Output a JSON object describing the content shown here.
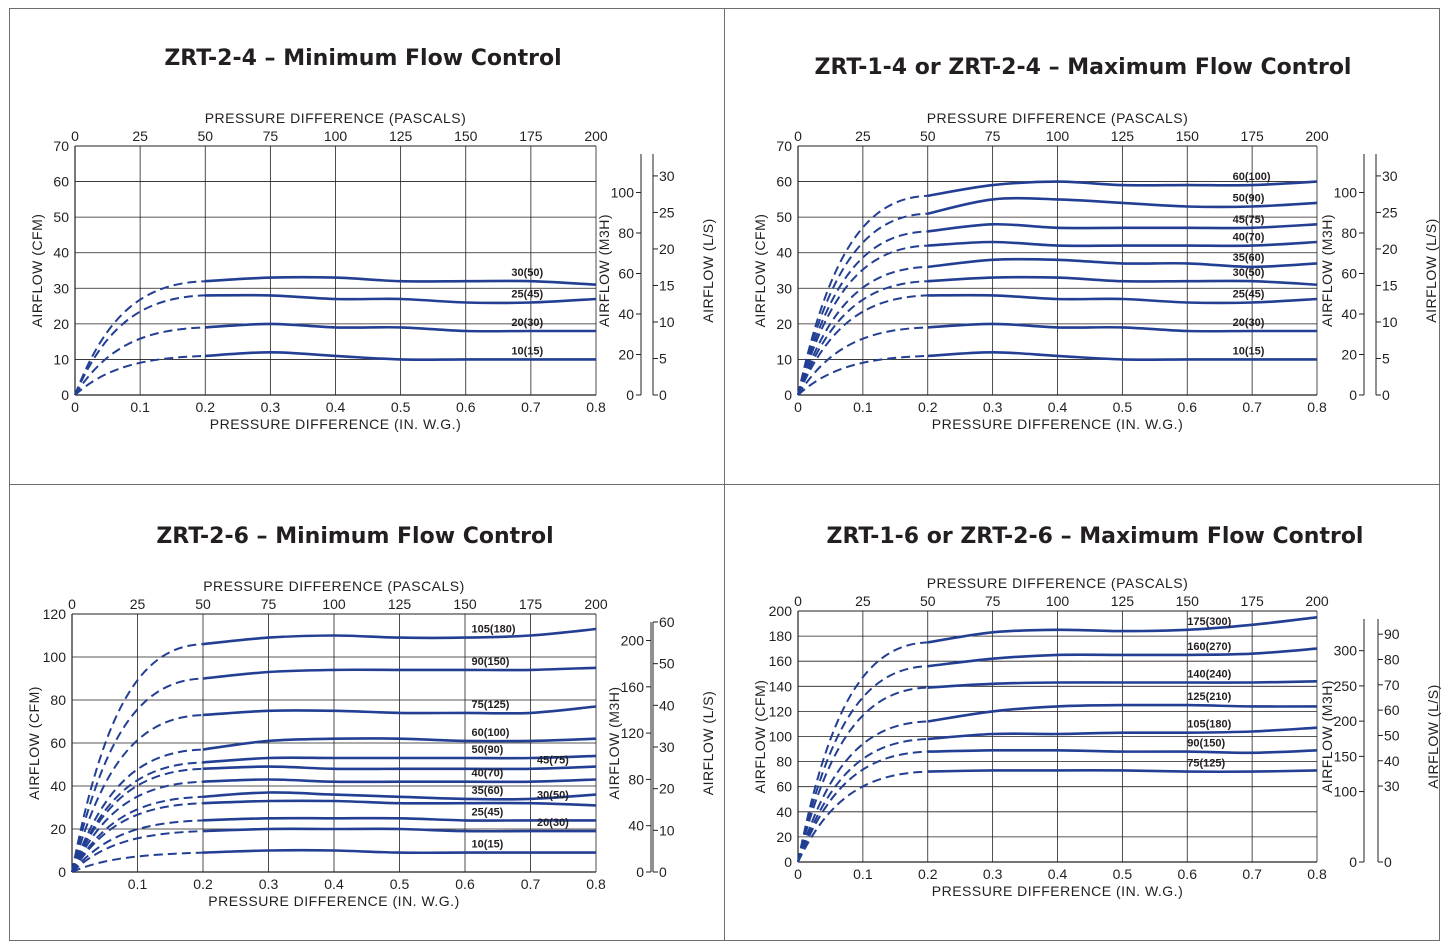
{
  "colors": {
    "curve": "#233f94",
    "axis": "#231f20",
    "border": "#6d6e71"
  },
  "chart_data": [
    {
      "type": "line",
      "title": "ZRT-2-4  –  Minimum Flow Control",
      "xlabel": "PRESSURE DIFFERENCE     (IN. W.G.)",
      "x2label": "PRESSURE DIFFERENCE  (PASCALS)",
      "ylabel": "AIRFLOW   (CFM)",
      "y2label": "AIRFLOW   (M3H)",
      "y3label": "AIRFLOW   (L/S)",
      "xlim": [
        0,
        0.8
      ],
      "ylim": [
        0,
        70
      ],
      "x_ticks": [
        "0",
        "0.1",
        "0.2",
        "0.3",
        "0.4",
        "0.5",
        "0.6",
        "0.7",
        "0.8"
      ],
      "x2_ticks": [
        "0",
        "25",
        "50",
        "75",
        "100",
        "125",
        "150",
        "175",
        "200"
      ],
      "y_ticks": [
        "0",
        "10",
        "20",
        "30",
        "40",
        "50",
        "60",
        "70"
      ],
      "m3h_ticks": [
        "0",
        "20",
        "40",
        "60",
        "80",
        "100"
      ],
      "ls_ticks": [
        "0",
        "5",
        "10",
        "15",
        "20",
        "25",
        "30"
      ],
      "series": [
        {
          "name": "30(50)",
          "label_x": 0.67,
          "x": [
            0.2,
            0.3,
            0.4,
            0.5,
            0.6,
            0.7,
            0.8
          ],
          "values": [
            32,
            33,
            33,
            32,
            32,
            32,
            31
          ]
        },
        {
          "name": "25(45)",
          "label_x": 0.67,
          "x": [
            0.2,
            0.3,
            0.4,
            0.5,
            0.6,
            0.7,
            0.8
          ],
          "values": [
            28,
            28,
            27,
            27,
            26,
            26,
            27
          ]
        },
        {
          "name": "20(30)",
          "label_x": 0.67,
          "x": [
            0.2,
            0.3,
            0.4,
            0.5,
            0.6,
            0.7,
            0.8
          ],
          "values": [
            19,
            20,
            19,
            19,
            18,
            18,
            18
          ]
        },
        {
          "name": "10(15)",
          "label_x": 0.67,
          "x": [
            0.2,
            0.3,
            0.4,
            0.5,
            0.6,
            0.7,
            0.8
          ],
          "values": [
            11,
            12,
            11,
            10,
            10,
            10,
            10
          ]
        }
      ]
    },
    {
      "type": "line",
      "title": "ZRT-1-4 or ZRT-2-4  –  Maximum Flow Control",
      "xlabel": "PRESSURE DIFFERENCE     (IN. W.G.)",
      "x2label": "PRESSURE DIFFERENCE  (PASCALS)",
      "ylabel": "AIRFLOW   (CFM)",
      "y2label": "AIRFLOW   (M3H)",
      "y3label": "AIRFLOW   (L/S)",
      "xlim": [
        0,
        0.8
      ],
      "ylim": [
        0,
        70
      ],
      "x_ticks": [
        "0",
        "0.1",
        "0.2",
        "0.3",
        "0.4",
        "0.5",
        "0.6",
        "0.7",
        "0.8"
      ],
      "x2_ticks": [
        "0",
        "25",
        "50",
        "75",
        "100",
        "125",
        "150",
        "175",
        "200"
      ],
      "y_ticks": [
        "0",
        "10",
        "20",
        "30",
        "40",
        "50",
        "60",
        "70"
      ],
      "m3h_ticks": [
        "0",
        "20",
        "40",
        "60",
        "80",
        "100"
      ],
      "ls_ticks": [
        "0",
        "5",
        "10",
        "15",
        "20",
        "25",
        "30"
      ],
      "series": [
        {
          "name": "60(100)",
          "label_x": 0.67,
          "x": [
            0.2,
            0.3,
            0.4,
            0.5,
            0.6,
            0.7,
            0.8
          ],
          "values": [
            56,
            59,
            60,
            59,
            59,
            59,
            60
          ]
        },
        {
          "name": "50(90)",
          "label_x": 0.67,
          "x": [
            0.2,
            0.3,
            0.4,
            0.5,
            0.6,
            0.7,
            0.8
          ],
          "values": [
            51,
            55,
            55,
            54,
            53,
            53,
            54
          ]
        },
        {
          "name": "45(75)",
          "label_x": 0.67,
          "x": [
            0.2,
            0.3,
            0.4,
            0.5,
            0.6,
            0.7,
            0.8
          ],
          "values": [
            46,
            48,
            47,
            47,
            47,
            47,
            48
          ]
        },
        {
          "name": "40(70)",
          "label_x": 0.67,
          "x": [
            0.2,
            0.3,
            0.4,
            0.5,
            0.6,
            0.7,
            0.8
          ],
          "values": [
            42,
            43,
            42,
            42,
            42,
            42,
            43
          ]
        },
        {
          "name": "35(60)",
          "label_x": 0.67,
          "x": [
            0.2,
            0.3,
            0.4,
            0.5,
            0.6,
            0.7,
            0.8
          ],
          "values": [
            36,
            38,
            38,
            37,
            37,
            36,
            37
          ]
        },
        {
          "name": "30(50)",
          "label_x": 0.67,
          "x": [
            0.2,
            0.3,
            0.4,
            0.5,
            0.6,
            0.7,
            0.8
          ],
          "values": [
            32,
            33,
            33,
            32,
            32,
            32,
            31
          ]
        },
        {
          "name": "25(45)",
          "label_x": 0.67,
          "x": [
            0.2,
            0.3,
            0.4,
            0.5,
            0.6,
            0.7,
            0.8
          ],
          "values": [
            28,
            28,
            27,
            27,
            26,
            26,
            27
          ]
        },
        {
          "name": "20(30)",
          "label_x": 0.67,
          "x": [
            0.2,
            0.3,
            0.4,
            0.5,
            0.6,
            0.7,
            0.8
          ],
          "values": [
            19,
            20,
            19,
            19,
            18,
            18,
            18
          ]
        },
        {
          "name": "10(15)",
          "label_x": 0.67,
          "x": [
            0.2,
            0.3,
            0.4,
            0.5,
            0.6,
            0.7,
            0.8
          ],
          "values": [
            11,
            12,
            11,
            10,
            10,
            10,
            10
          ]
        }
      ]
    },
    {
      "type": "line",
      "title": "ZRT-2-6  –  Minimum Flow Control",
      "xlabel": "PRESSURE DIFFERENCE     (IN. W.G.)",
      "x2label": "PRESSURE DIFFERENCE     (PASCALS)",
      "ylabel": "AIRFLOW   (CFM)",
      "y2label": "AIRFLOW   (M3H)",
      "y3label": "AIRFLOW   (L/S)",
      "xlim": [
        0,
        0.8
      ],
      "ylim": [
        0,
        120
      ],
      "x_ticks": [
        "0.1",
        "0.2",
        "0.3",
        "0.4",
        "0.5",
        "0.6",
        "0.7",
        "0.8"
      ],
      "x2_ticks": [
        "0",
        "25",
        "50",
        "75",
        "100",
        "125",
        "150",
        "175",
        "200"
      ],
      "y_ticks": [
        "0",
        "20",
        "40",
        "60",
        "80",
        "100",
        "120"
      ],
      "m3h_ticks": [
        "0",
        "40",
        "80",
        "120",
        "160",
        "200"
      ],
      "ls_ticks": [
        "0",
        "10",
        "20",
        "30",
        "40",
        "50",
        "60"
      ],
      "series": [
        {
          "name": "105(180)",
          "label_x": 0.61,
          "x": [
            0.2,
            0.3,
            0.4,
            0.5,
            0.6,
            0.7,
            0.8
          ],
          "values": [
            106,
            109,
            110,
            109,
            109,
            110,
            113
          ]
        },
        {
          "name": "90(150)",
          "label_x": 0.61,
          "x": [
            0.2,
            0.3,
            0.4,
            0.5,
            0.6,
            0.7,
            0.8
          ],
          "values": [
            90,
            93,
            94,
            94,
            94,
            94,
            95
          ]
        },
        {
          "name": "75(125)",
          "label_x": 0.61,
          "x": [
            0.2,
            0.3,
            0.4,
            0.5,
            0.6,
            0.7,
            0.8
          ],
          "values": [
            73,
            75,
            75,
            74,
            74,
            74,
            77
          ]
        },
        {
          "name": "60(100)",
          "label_x": 0.61,
          "x": [
            0.2,
            0.3,
            0.4,
            0.5,
            0.6,
            0.7,
            0.8
          ],
          "values": [
            57,
            61,
            62,
            62,
            61,
            61,
            62
          ]
        },
        {
          "name": "50(90)",
          "label_x": 0.61,
          "x": [
            0.2,
            0.3,
            0.4,
            0.5,
            0.6,
            0.7,
            0.8
          ],
          "values": [
            51,
            53,
            53,
            53,
            53,
            53,
            54
          ]
        },
        {
          "name": "45(75)",
          "label_x": 0.71,
          "x": [
            0.2,
            0.3,
            0.4,
            0.5,
            0.6,
            0.7,
            0.8
          ],
          "values": [
            48,
            49,
            48,
            48,
            48,
            48,
            49
          ]
        },
        {
          "name": "40(70)",
          "label_x": 0.61,
          "x": [
            0.2,
            0.3,
            0.4,
            0.5,
            0.6,
            0.7,
            0.8
          ],
          "values": [
            42,
            43,
            42,
            42,
            42,
            42,
            43
          ]
        },
        {
          "name": "35(60)",
          "label_x": 0.61,
          "x": [
            0.2,
            0.3,
            0.4,
            0.5,
            0.6,
            0.7,
            0.8
          ],
          "values": [
            35,
            37,
            36,
            35,
            34,
            34,
            36
          ]
        },
        {
          "name": "30(50)",
          "label_x": 0.71,
          "x": [
            0.2,
            0.3,
            0.4,
            0.5,
            0.6,
            0.7,
            0.8
          ],
          "values": [
            32,
            33,
            33,
            32,
            32,
            32,
            31
          ]
        },
        {
          "name": "25(45)",
          "label_x": 0.61,
          "x": [
            0.2,
            0.3,
            0.4,
            0.5,
            0.6,
            0.7,
            0.8
          ],
          "values": [
            24,
            25,
            25,
            25,
            24,
            24,
            24
          ]
        },
        {
          "name": "20(30)",
          "label_x": 0.71,
          "x": [
            0.2,
            0.3,
            0.4,
            0.5,
            0.6,
            0.7,
            0.8
          ],
          "values": [
            19,
            20,
            20,
            20,
            19,
            19,
            19
          ]
        },
        {
          "name": "10(15)",
          "label_x": 0.61,
          "x": [
            0.2,
            0.3,
            0.4,
            0.5,
            0.6,
            0.7,
            0.8
          ],
          "values": [
            9,
            10,
            10,
            9,
            9,
            9,
            9
          ]
        }
      ]
    },
    {
      "type": "line",
      "title": "ZRT-1-6 or ZRT-2-6  –  Maximum Flow Control",
      "xlabel": "PRESSURE DIFFERENCE     (IN. W.G.)",
      "x2label": "PRESSURE DIFFERENCE     (PASCALS)",
      "ylabel": "AIRFLOW   (CFM)",
      "y2label": "AIRFLOW   (M3H)",
      "y3label": "AIRFLOW   (L/S)",
      "xlim": [
        0,
        0.8
      ],
      "ylim": [
        0,
        200
      ],
      "x_ticks": [
        "0",
        "0.1",
        "0.2",
        "0.3",
        "0.4",
        "0.5",
        "0.6",
        "0.7",
        "0.8"
      ],
      "x2_ticks": [
        "0",
        "25",
        "50",
        "75",
        "100",
        "125",
        "150",
        "175",
        "200"
      ],
      "y_ticks": [
        "0",
        "20",
        "40",
        "60",
        "80",
        "100",
        "120",
        "140",
        "160",
        "180",
        "200"
      ],
      "m3h_ticks": [
        "0",
        "100",
        "150",
        "200",
        "250",
        "300"
      ],
      "ls_ticks": [
        "0",
        "30",
        "40",
        "50",
        "60",
        "70",
        "80",
        "90"
      ],
      "series": [
        {
          "name": "175(300)",
          "label_x": 0.6,
          "x": [
            0.2,
            0.3,
            0.4,
            0.5,
            0.6,
            0.7,
            0.8
          ],
          "values": [
            175,
            183,
            185,
            184,
            185,
            189,
            195
          ]
        },
        {
          "name": "160(270)",
          "label_x": 0.6,
          "x": [
            0.2,
            0.3,
            0.4,
            0.5,
            0.6,
            0.7,
            0.8
          ],
          "values": [
            156,
            162,
            165,
            165,
            165,
            166,
            170
          ]
        },
        {
          "name": "140(240)",
          "label_x": 0.6,
          "x": [
            0.2,
            0.3,
            0.4,
            0.5,
            0.6,
            0.7,
            0.8
          ],
          "values": [
            139,
            142,
            143,
            143,
            143,
            143,
            144
          ]
        },
        {
          "name": "125(210)",
          "label_x": 0.6,
          "x": [
            0.2,
            0.3,
            0.4,
            0.5,
            0.6,
            0.7,
            0.8
          ],
          "values": [
            112,
            120,
            124,
            125,
            125,
            124,
            124
          ]
        },
        {
          "name": "105(180)",
          "label_x": 0.6,
          "x": [
            0.2,
            0.3,
            0.4,
            0.5,
            0.6,
            0.7,
            0.8
          ],
          "values": [
            98,
            102,
            102,
            103,
            103,
            104,
            107
          ]
        },
        {
          "name": "90(150)",
          "label_x": 0.6,
          "x": [
            0.2,
            0.3,
            0.4,
            0.5,
            0.6,
            0.7,
            0.8
          ],
          "values": [
            88,
            89,
            89,
            88,
            88,
            87,
            89
          ]
        },
        {
          "name": "75(125)",
          "label_x": 0.6,
          "x": [
            0.2,
            0.3,
            0.4,
            0.5,
            0.6,
            0.7,
            0.8
          ],
          "values": [
            72,
            73,
            73,
            73,
            72,
            72,
            73
          ]
        }
      ]
    }
  ]
}
